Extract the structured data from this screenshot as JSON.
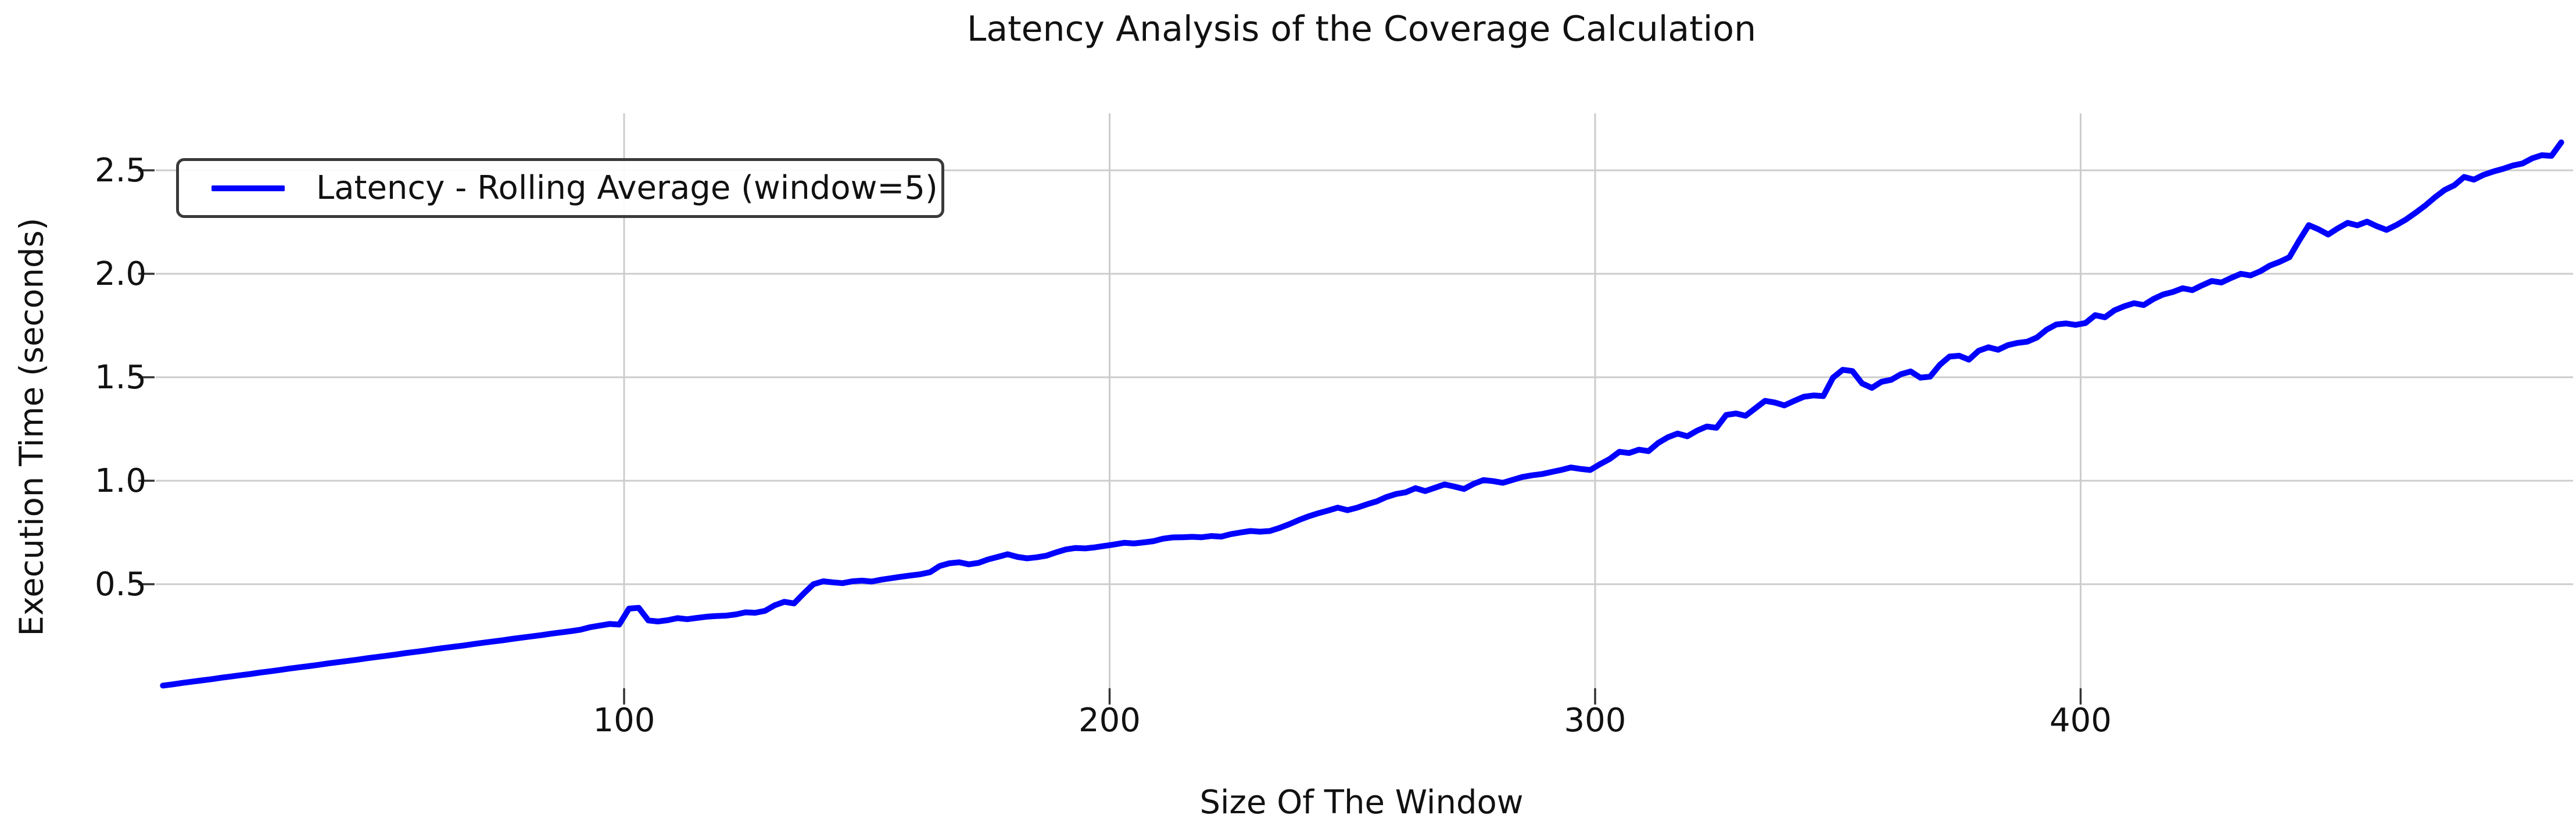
{
  "figure": {
    "title": "Latency Analysis of the Coverage Calculation",
    "background": "#ffffff"
  },
  "legend": {
    "label": "Latency - Rolling Average (window=5)",
    "sample_color": "#0000ff",
    "border_color": "#3a3a3a"
  },
  "chart_data": {
    "type": "line",
    "title": "Latency Analysis of the Coverage Calculation",
    "xlabel": "Size Of The Window",
    "ylabel": "Execution Time (seconds)",
    "x_ticks": [
      100,
      200,
      300,
      400
    ],
    "y_ticks": [
      0.5,
      1.0,
      1.5,
      2.0,
      2.5
    ],
    "x_tick_labels": [
      "100",
      "200",
      "300",
      "400"
    ],
    "y_tick_labels": [
      "0.5",
      "1.0",
      "1.5",
      "2.0",
      "2.5"
    ],
    "xlim": [
      4,
      502
    ],
    "ylim": [
      0,
      2.78
    ],
    "grid": true,
    "legend_position": "upper left",
    "colors": {
      "line": "#0000ff",
      "grid": "#cccccc",
      "tick": "#333333",
      "text": "#111111"
    },
    "series": [
      {
        "name": "Latency - Rolling Average (window=5)",
        "color": "#0000ff",
        "x": [
          5,
          7,
          9,
          11,
          13,
          15,
          17,
          19,
          21,
          23,
          25,
          27,
          29,
          31,
          33,
          35,
          37,
          39,
          41,
          43,
          45,
          47,
          49,
          51,
          53,
          55,
          57,
          59,
          61,
          63,
          65,
          67,
          69,
          71,
          73,
          75,
          77,
          79,
          81,
          83,
          85,
          87,
          89,
          91,
          93,
          95,
          97,
          99,
          101,
          103,
          105,
          107,
          109,
          111,
          113,
          115,
          117,
          119,
          121,
          123,
          125,
          127,
          129,
          131,
          133,
          135,
          137,
          139,
          141,
          143,
          145,
          147,
          149,
          151,
          153,
          155,
          157,
          159,
          161,
          163,
          165,
          167,
          169,
          171,
          173,
          175,
          177,
          179,
          181,
          183,
          185,
          187,
          189,
          191,
          193,
          195,
          197,
          199,
          201,
          203,
          205,
          207,
          209,
          211,
          213,
          215,
          217,
          219,
          221,
          223,
          225,
          227,
          229,
          231,
          233,
          235,
          237,
          239,
          241,
          243,
          245,
          247,
          249,
          251,
          253,
          255,
          257,
          259,
          261,
          263,
          265,
          267,
          269,
          271,
          273,
          275,
          277,
          279,
          281,
          283,
          285,
          287,
          289,
          291,
          293,
          295,
          297,
          299,
          301,
          303,
          305,
          307,
          309,
          311,
          313,
          315,
          317,
          319,
          321,
          323,
          325,
          327,
          329,
          331,
          333,
          335,
          337,
          339,
          341,
          343,
          345,
          347,
          349,
          351,
          353,
          355,
          357,
          359,
          361,
          363,
          365,
          367,
          369,
          371,
          373,
          375,
          377,
          379,
          381,
          383,
          385,
          387,
          389,
          391,
          393,
          395,
          397,
          399,
          401,
          403,
          405,
          407,
          409,
          411,
          413,
          415,
          417,
          419,
          421,
          423,
          425,
          427,
          429,
          431,
          433,
          435,
          437,
          439,
          441,
          443,
          445,
          447,
          449,
          451,
          453,
          455,
          457,
          459,
          461,
          463,
          465,
          467,
          469,
          471,
          473,
          475,
          477,
          479,
          481,
          483,
          485,
          487,
          489,
          491,
          493,
          495,
          497,
          499
        ],
        "y": [
          0.01,
          0.016,
          0.023,
          0.029,
          0.035,
          0.041,
          0.048,
          0.054,
          0.06,
          0.066,
          0.073,
          0.079,
          0.085,
          0.092,
          0.098,
          0.104,
          0.11,
          0.117,
          0.123,
          0.129,
          0.135,
          0.142,
          0.148,
          0.154,
          0.16,
          0.167,
          0.173,
          0.179,
          0.186,
          0.192,
          0.198,
          0.204,
          0.211,
          0.217,
          0.223,
          0.229,
          0.236,
          0.242,
          0.248,
          0.254,
          0.261,
          0.267,
          0.273,
          0.28,
          0.292,
          0.3,
          0.308,
          0.305,
          0.382,
          0.386,
          0.325,
          0.32,
          0.326,
          0.336,
          0.331,
          0.337,
          0.343,
          0.346,
          0.348,
          0.354,
          0.364,
          0.362,
          0.371,
          0.398,
          0.415,
          0.407,
          0.455,
          0.5,
          0.514,
          0.509,
          0.505,
          0.514,
          0.517,
          0.513,
          0.522,
          0.529,
          0.536,
          0.542,
          0.548,
          0.558,
          0.588,
          0.601,
          0.606,
          0.596,
          0.603,
          0.62,
          0.632,
          0.645,
          0.632,
          0.625,
          0.63,
          0.638,
          0.654,
          0.668,
          0.675,
          0.673,
          0.678,
          0.685,
          0.692,
          0.7,
          0.697,
          0.702,
          0.708,
          0.72,
          0.726,
          0.727,
          0.729,
          0.727,
          0.733,
          0.73,
          0.742,
          0.75,
          0.757,
          0.754,
          0.757,
          0.772,
          0.79,
          0.81,
          0.828,
          0.843,
          0.856,
          0.87,
          0.858,
          0.87,
          0.886,
          0.9,
          0.921,
          0.936,
          0.944,
          0.964,
          0.95,
          0.966,
          0.982,
          0.972,
          0.96,
          0.985,
          1.003,
          0.998,
          0.99,
          1.004,
          1.018,
          1.026,
          1.032,
          1.042,
          1.052,
          1.064,
          1.057,
          1.052,
          1.08,
          1.105,
          1.14,
          1.134,
          1.15,
          1.143,
          1.183,
          1.21,
          1.228,
          1.215,
          1.242,
          1.262,
          1.256,
          1.318,
          1.325,
          1.314,
          1.35,
          1.386,
          1.378,
          1.364,
          1.386,
          1.406,
          1.412,
          1.409,
          1.498,
          1.536,
          1.53,
          1.47,
          1.449,
          1.478,
          1.488,
          1.515,
          1.528,
          1.498,
          1.503,
          1.56,
          1.6,
          1.604,
          1.585,
          1.628,
          1.645,
          1.633,
          1.655,
          1.666,
          1.672,
          1.692,
          1.73,
          1.755,
          1.76,
          1.753,
          1.762,
          1.8,
          1.79,
          1.824,
          1.843,
          1.858,
          1.849,
          1.878,
          1.9,
          1.912,
          1.93,
          1.921,
          1.944,
          1.965,
          1.958,
          1.98,
          2.0,
          1.992,
          2.012,
          2.04,
          2.058,
          2.08,
          2.16,
          2.235,
          2.215,
          2.19,
          2.22,
          2.246,
          2.234,
          2.252,
          2.23,
          2.212,
          2.235,
          2.262,
          2.295,
          2.33,
          2.37,
          2.405,
          2.428,
          2.468,
          2.455,
          2.478,
          2.494,
          2.507,
          2.523,
          2.533,
          2.558,
          2.573,
          2.57,
          2.635
        ]
      }
    ]
  }
}
